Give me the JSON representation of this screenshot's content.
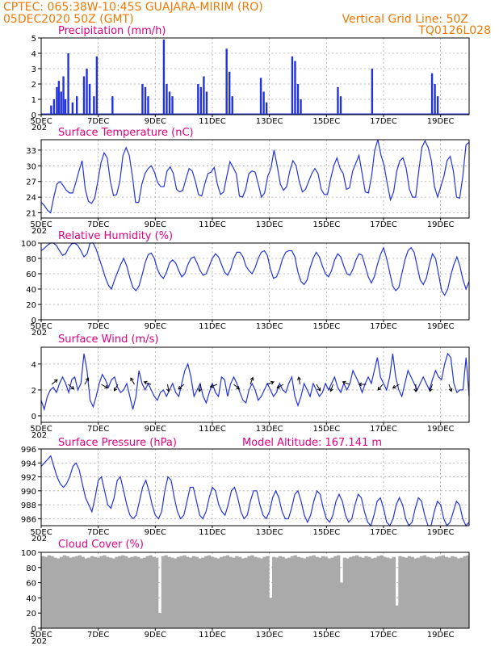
{
  "header": {
    "line1_left": "CPTEC:   065:38W-10:45S   GUAJARA-MIRIM (RO)",
    "line2_left": "05DEC2020 50Z (GMT)",
    "line2_right": "Vertical Grid Line: 50Z",
    "line3_right": "TQ0126L028"
  },
  "colors": {
    "header": "#f07800",
    "title": "#e0007f",
    "series": "#2233dd",
    "cloud": "#aaaaaa"
  },
  "date_labels": [
    "5DEC",
    "7DEC",
    "9DEC",
    "11DEC",
    "13DEC",
    "15DEC",
    "17DEC",
    "19DEC"
  ],
  "stray_label": "202",
  "extra_title": "Model Altitude: 167.141 m",
  "chart_data": [
    {
      "type": "bar",
      "title": "Precipitation (mm/h)",
      "x_range_days": [
        0,
        15
      ],
      "ylim": [
        0,
        5
      ],
      "yticks": [
        0,
        1,
        2,
        3,
        4,
        5
      ],
      "grid": true,
      "events": [
        {
          "day": 0.35,
          "value": 0.6
        },
        {
          "day": 0.45,
          "value": 1.0
        },
        {
          "day": 0.55,
          "value": 1.8
        },
        {
          "day": 0.62,
          "value": 2.2
        },
        {
          "day": 0.7,
          "value": 1.5
        },
        {
          "day": 0.78,
          "value": 2.5
        },
        {
          "day": 0.85,
          "value": 1.0
        },
        {
          "day": 0.95,
          "value": 4.0
        },
        {
          "day": 1.1,
          "value": 0.8
        },
        {
          "day": 1.25,
          "value": 1.2
        },
        {
          "day": 1.5,
          "value": 2.5
        },
        {
          "day": 1.6,
          "value": 3.0
        },
        {
          "day": 1.7,
          "value": 2.0
        },
        {
          "day": 1.85,
          "value": 1.2
        },
        {
          "day": 1.95,
          "value": 3.8
        },
        {
          "day": 2.5,
          "value": 1.2
        },
        {
          "day": 3.55,
          "value": 2.0
        },
        {
          "day": 3.65,
          "value": 1.8
        },
        {
          "day": 3.75,
          "value": 1.2
        },
        {
          "day": 4.3,
          "value": 4.9
        },
        {
          "day": 4.4,
          "value": 2.0
        },
        {
          "day": 4.5,
          "value": 1.5
        },
        {
          "day": 4.6,
          "value": 1.2
        },
        {
          "day": 5.5,
          "value": 2.0
        },
        {
          "day": 5.6,
          "value": 1.8
        },
        {
          "day": 5.7,
          "value": 2.5
        },
        {
          "day": 5.8,
          "value": 1.5
        },
        {
          "day": 6.5,
          "value": 4.3
        },
        {
          "day": 6.6,
          "value": 2.8
        },
        {
          "day": 6.7,
          "value": 1.2
        },
        {
          "day": 7.7,
          "value": 2.4
        },
        {
          "day": 7.8,
          "value": 1.5
        },
        {
          "day": 7.9,
          "value": 0.8
        },
        {
          "day": 8.8,
          "value": 3.8
        },
        {
          "day": 8.9,
          "value": 3.5
        },
        {
          "day": 9.0,
          "value": 2.0
        },
        {
          "day": 9.1,
          "value": 1.0
        },
        {
          "day": 10.4,
          "value": 1.8
        },
        {
          "day": 10.5,
          "value": 1.2
        },
        {
          "day": 11.6,
          "value": 3.0
        },
        {
          "day": 13.7,
          "value": 2.7
        },
        {
          "day": 13.8,
          "value": 2.0
        },
        {
          "day": 13.9,
          "value": 1.2
        }
      ]
    },
    {
      "type": "line",
      "title": "Surface Temperature (nC)",
      "x_range_days": [
        0,
        15
      ],
      "ylim": [
        20,
        35
      ],
      "yticks": [
        21,
        24,
        27,
        30,
        33
      ],
      "grid": true,
      "values": [
        23.0,
        22.4,
        21.5,
        21.0,
        24.0,
        26.5,
        27.0,
        26.2,
        25.3,
        24.8,
        24.8,
        26.8,
        29.0,
        31.0,
        25.5,
        23.2,
        22.8,
        23.8,
        27.0,
        30.5,
        32.5,
        31.5,
        27.0,
        24.3,
        24.5,
        27.0,
        32.0,
        33.5,
        32.0,
        28.0,
        23.0,
        23.0,
        26.5,
        28.5,
        29.5,
        30.0,
        28.8,
        26.8,
        26.0,
        26.0,
        29.0,
        29.8,
        28.5,
        25.5,
        25.0,
        25.3,
        27.5,
        29.5,
        29.0,
        27.0,
        24.5,
        24.2,
        26.5,
        28.5,
        28.8,
        29.7,
        26.5,
        24.5,
        25.0,
        28.0,
        30.8,
        29.7,
        28.5,
        24.2,
        24.0,
        25.5,
        28.5,
        29.0,
        28.8,
        26.5,
        24.0,
        24.8,
        28.0,
        29.5,
        33.0,
        30.0,
        26.5,
        25.3,
        26.0,
        29.0,
        31.0,
        30.0,
        27.0,
        25.0,
        25.5,
        27.0,
        28.5,
        29.5,
        28.5,
        25.5,
        24.5,
        24.5,
        27.5,
        30.0,
        31.5,
        29.5,
        28.5,
        25.5,
        25.8,
        29.0,
        30.5,
        32.0,
        28.5,
        25.0,
        24.8,
        28.0,
        33.0,
        35.0,
        32.0,
        30.0,
        26.5,
        23.5,
        25.0,
        29.0,
        31.0,
        31.5,
        29.5,
        25.5,
        24.0,
        24.0,
        29.0,
        33.5,
        34.8,
        33.5,
        31.0,
        26.0,
        24.0,
        26.0,
        28.0,
        31.0,
        31.8,
        29.0,
        24.0,
        23.8,
        28.0,
        34.0,
        34.5
      ]
    },
    {
      "type": "line",
      "title": "Relative Humidity (%)",
      "x_range_days": [
        0,
        15
      ],
      "ylim": [
        0,
        100
      ],
      "yticks": [
        0,
        20,
        40,
        60,
        80,
        100
      ],
      "grid": true,
      "values": [
        90,
        93,
        97,
        100,
        100,
        97,
        90,
        84,
        86,
        94,
        99,
        100,
        97,
        90,
        82,
        86,
        100,
        100,
        92,
        80,
        68,
        55,
        45,
        40,
        52,
        62,
        72,
        80,
        70,
        55,
        42,
        38,
        44,
        58,
        74,
        85,
        87,
        80,
        66,
        58,
        54,
        62,
        74,
        78,
        74,
        64,
        56,
        60,
        72,
        80,
        82,
        74,
        64,
        58,
        60,
        70,
        80,
        86,
        82,
        72,
        62,
        58,
        66,
        80,
        88,
        88,
        82,
        70,
        64,
        60,
        68,
        80,
        88,
        90,
        84,
        66,
        54,
        56,
        66,
        80,
        88,
        90,
        90,
        82,
        62,
        50,
        46,
        52,
        68,
        80,
        88,
        82,
        70,
        60,
        56,
        64,
        78,
        86,
        82,
        70,
        60,
        58,
        66,
        78,
        86,
        84,
        70,
        56,
        48,
        56,
        72,
        85,
        94,
        80,
        62,
        44,
        38,
        42,
        60,
        78,
        90,
        94,
        88,
        70,
        52,
        46,
        54,
        72,
        86,
        80,
        60,
        38,
        32,
        40,
        58,
        72,
        82,
        70,
        52,
        40,
        50
      ]
    },
    {
      "type": "line",
      "title": "Surface Wind (m/s)",
      "x_range_days": [
        0,
        15
      ],
      "ylim": [
        -0.5,
        5.3
      ],
      "yticks": [
        0,
        2,
        4
      ],
      "grid": true,
      "values": [
        1.2,
        0.5,
        1.5,
        2.0,
        2.2,
        1.8,
        2.5,
        3.0,
        2.5,
        1.8,
        2.8,
        3.0,
        2.0,
        2.5,
        4.8,
        3.5,
        1.2,
        0.7,
        1.5,
        2.5,
        3.2,
        2.8,
        2.2,
        2.8,
        3.0,
        2.2,
        1.8,
        2.0,
        2.5,
        1.5,
        0.5,
        1.5,
        3.5,
        2.5,
        2.0,
        2.5,
        2.0,
        1.5,
        1.2,
        1.8,
        2.0,
        1.5,
        2.0,
        2.5,
        1.8,
        1.5,
        2.5,
        3.5,
        4.0,
        3.0,
        1.5,
        2.0,
        2.5,
        1.5,
        1.0,
        1.8,
        2.5,
        1.8,
        1.5,
        3.0,
        2.8,
        1.5,
        2.5,
        3.0,
        2.5,
        1.8,
        1.2,
        1.0,
        2.0,
        2.5,
        2.0,
        1.2,
        1.5,
        2.0,
        2.5,
        2.0,
        1.5,
        1.8,
        2.5,
        2.0,
        1.8,
        2.5,
        3.0,
        1.5,
        0.8,
        1.5,
        2.5,
        2.0,
        1.5,
        2.5,
        2.0,
        1.5,
        1.8,
        2.5,
        2.0,
        2.5,
        3.0,
        2.2,
        1.8,
        2.5,
        2.0,
        2.5,
        3.5,
        3.0,
        2.5,
        1.8,
        2.5,
        3.0,
        2.5,
        3.5,
        4.5,
        3.0,
        2.5,
        2.0,
        3.0,
        4.8,
        3.0,
        2.0,
        1.5,
        2.5,
        3.5,
        3.0,
        2.5,
        2.0,
        2.5,
        3.0,
        2.5,
        2.0,
        2.8,
        3.5,
        3.0,
        2.8,
        4.0,
        4.8,
        4.5,
        2.5,
        1.8,
        2.0,
        2.0,
        4.5,
        1.5
      ]
    },
    {
      "type": "line",
      "title": "Surface Pressure (hPa)",
      "x_range_days": [
        0,
        15
      ],
      "ylim": [
        985,
        996
      ],
      "yticks": [
        986,
        988,
        990,
        992,
        994,
        996
      ],
      "grid": true,
      "values": [
        993.5,
        994.0,
        994.5,
        995.0,
        993.5,
        992.0,
        991.0,
        990.5,
        991.0,
        992.0,
        993.5,
        994.0,
        993.0,
        991.0,
        989.0,
        988.0,
        987.0,
        989.0,
        991.5,
        992.0,
        990.0,
        988.0,
        987.5,
        989.0,
        991.5,
        992.0,
        990.0,
        988.0,
        986.5,
        986.0,
        986.5,
        988.5,
        990.5,
        991.5,
        990.0,
        988.0,
        986.5,
        986.0,
        987.0,
        990.0,
        992.0,
        991.5,
        989.0,
        987.0,
        986.0,
        986.5,
        988.5,
        990.5,
        990.5,
        988.5,
        986.5,
        986.0,
        987.0,
        989.0,
        990.5,
        990.0,
        988.0,
        987.0,
        986.5,
        988.0,
        990.0,
        990.5,
        989.0,
        987.0,
        986.0,
        986.5,
        988.5,
        990.0,
        990.0,
        988.0,
        986.5,
        986.0,
        987.0,
        989.0,
        990.0,
        989.0,
        987.0,
        986.0,
        986.0,
        987.5,
        989.5,
        990.0,
        988.5,
        986.5,
        985.5,
        986.5,
        988.5,
        990.0,
        989.5,
        987.5,
        986.0,
        985.5,
        986.5,
        988.5,
        989.5,
        988.5,
        986.5,
        985.5,
        986.0,
        988.0,
        989.5,
        989.0,
        987.0,
        985.5,
        985.0,
        986.5,
        988.5,
        989.0,
        987.5,
        985.5,
        985.0,
        986.0,
        988.0,
        989.0,
        988.0,
        986.0,
        985.0,
        985.5,
        987.5,
        989.0,
        988.5,
        986.5,
        985.0,
        985.0,
        987.0,
        988.5,
        988.0,
        986.0,
        985.0,
        985.5,
        987.0,
        988.5,
        988.0,
        986.0,
        984.5,
        985.5
      ]
    },
    {
      "type": "area",
      "title": "Cloud Cover (%)",
      "x_range_days": [
        0,
        15
      ],
      "ylim": [
        0,
        100
      ],
      "yticks": [
        0,
        20,
        40,
        60,
        80,
        100
      ],
      "grid": true,
      "values": [
        95,
        94,
        96,
        95,
        93,
        92,
        94,
        96,
        95,
        93,
        94,
        95,
        96,
        94,
        92,
        93,
        95,
        94,
        93,
        95,
        96,
        94,
        93,
        92,
        94,
        95,
        96,
        95,
        93,
        94,
        95,
        94,
        92,
        93,
        95,
        96,
        94,
        93,
        20,
        95,
        96,
        94,
        93,
        92,
        94,
        95,
        96,
        94,
        93,
        95,
        94,
        92,
        93,
        95,
        96,
        94,
        93,
        92,
        94,
        95,
        96,
        94,
        93,
        95,
        94,
        92,
        93,
        95,
        96,
        94,
        93,
        92,
        94,
        95,
        40,
        94,
        93,
        95,
        94,
        92,
        93,
        95,
        96,
        94,
        93,
        92,
        94,
        95,
        96,
        94,
        93,
        95,
        94,
        92,
        93,
        95,
        96,
        60,
        93,
        92,
        94,
        95,
        96,
        94,
        93,
        95,
        94,
        92,
        93,
        95,
        96,
        94,
        93,
        92,
        94,
        30,
        95,
        94,
        93,
        95,
        94,
        92,
        93,
        95,
        96,
        94,
        93,
        92,
        94,
        95,
        96,
        94,
        93,
        95,
        94,
        92,
        93,
        95,
        96
      ]
    }
  ]
}
